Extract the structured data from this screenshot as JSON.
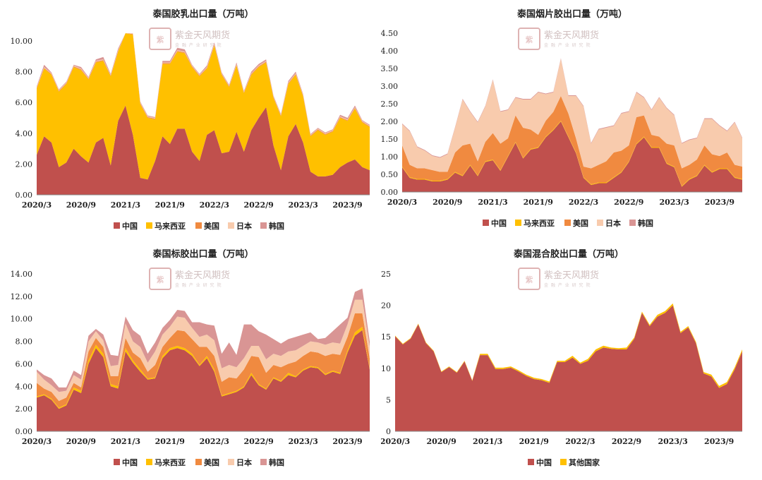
{
  "colors": {
    "中国": "#c0504d",
    "马来西亚": "#ffc000",
    "美国": "#f08a40",
    "日本": "#f8cbad",
    "韩国": "#d99594",
    "其他国家": "#ffc000"
  },
  "watermark": {
    "text": "紫金天风期货",
    "sub": "金 融 产 业 研 究 院"
  },
  "xtick_labels": [
    "2020/3",
    "2020/9",
    "2021/3",
    "2021/9",
    "2022/3",
    "2022/9",
    "2023/3",
    "2023/9"
  ],
  "chart_data": [
    {
      "type": "area",
      "title": "泰国胶乳出口量（万吨）",
      "ylim": [
        0,
        10.5
      ],
      "yticks": [
        0,
        2,
        4,
        6,
        8,
        10
      ],
      "ytick_labels": [
        "0.00",
        "2.00",
        "4.00",
        "6.00",
        "8.00",
        "10.00"
      ],
      "legend": [
        "中国",
        "马来西亚",
        "美国",
        "日本",
        "韩国"
      ],
      "series": [
        {
          "name": "中国",
          "values": [
            2.6,
            3.8,
            3.4,
            1.8,
            2.1,
            3.0,
            2.5,
            2.1,
            3.4,
            3.7,
            1.9,
            4.8,
            5.8,
            3.9,
            1.1,
            1.0,
            2.2,
            3.8,
            3.3,
            4.3,
            4.3,
            2.8,
            2.2,
            3.9,
            4.2,
            2.7,
            2.8,
            4.1,
            2.8,
            4.2,
            5.0,
            5.7,
            3.2,
            1.6,
            3.8,
            4.6,
            3.4,
            1.5,
            1.2,
            1.2,
            1.3,
            1.8,
            2.1,
            2.3,
            1.8,
            1.6
          ]
        },
        {
          "name": "马来西亚",
          "values": [
            4.3,
            4.4,
            4.4,
            4.9,
            5.1,
            5.3,
            5.6,
            5.4,
            5.2,
            5.0,
            5.8,
            4.5,
            4.7,
            6.5,
            4.8,
            4.0,
            2.7,
            4.7,
            5.2,
            5.0,
            4.9,
            5.5,
            5.5,
            4.3,
            5.5,
            5.1,
            4.2,
            4.3,
            3.8,
            3.6,
            3.3,
            2.9,
            3.1,
            3.5,
            3.4,
            3.2,
            3.0,
            2.3,
            3.0,
            2.7,
            2.8,
            3.2,
            2.7,
            3.3,
            2.9,
            2.8
          ]
        },
        {
          "name": "美国",
          "values": [
            0.05,
            0.05,
            0.05,
            0.05,
            0.05,
            0.05,
            0.05,
            0.05,
            0.05,
            0.05,
            0.05,
            0.05,
            0.05,
            0.05,
            0.05,
            0.05,
            0.05,
            0.05,
            0.05,
            0.05,
            0.05,
            0.05,
            0.05,
            0.05,
            0.05,
            0.05,
            0.05,
            0.05,
            0.05,
            0.05,
            0.05,
            0.05,
            0.05,
            0.05,
            0.05,
            0.05,
            0.05,
            0.05,
            0.05,
            0.05,
            0.05,
            0.05,
            0.05,
            0.05,
            0.05,
            0.05
          ]
        },
        {
          "name": "日本",
          "values": [
            0.05,
            0.05,
            0.05,
            0.05,
            0.05,
            0.05,
            0.05,
            0.05,
            0.05,
            0.05,
            0.05,
            0.05,
            0.05,
            0.05,
            0.05,
            0.05,
            0.05,
            0.05,
            0.05,
            0.05,
            0.05,
            0.05,
            0.05,
            0.05,
            0.05,
            0.05,
            0.05,
            0.05,
            0.05,
            0.05,
            0.05,
            0.05,
            0.05,
            0.05,
            0.05,
            0.05,
            0.05,
            0.05,
            0.05,
            0.05,
            0.05,
            0.05,
            0.05,
            0.05,
            0.05,
            0.05
          ]
        },
        {
          "name": "韩国",
          "values": [
            0.05,
            0.15,
            0.05,
            0.05,
            0.05,
            0.05,
            0.1,
            0.05,
            0.1,
            0.15,
            0.05,
            0.1,
            0.1,
            0.1,
            0.05,
            0.05,
            0.05,
            0.1,
            0.1,
            0.15,
            0.15,
            0.05,
            0.05,
            0.1,
            0.1,
            0.05,
            0.05,
            0.1,
            0.05,
            0.1,
            0.1,
            0.1,
            0.05,
            0.05,
            0.1,
            0.1,
            0.05,
            0.05,
            0.05,
            0.05,
            0.05,
            0.1,
            0.1,
            0.1,
            0.05,
            0.05
          ]
        }
      ]
    },
    {
      "type": "area",
      "title": "泰国烟片胶出口量（万吨）",
      "ylim": [
        0,
        4.5
      ],
      "yticks": [
        0,
        0.5,
        1,
        1.5,
        2,
        2.5,
        3,
        3.5,
        4,
        4.5
      ],
      "ytick_labels": [
        "0.00",
        "0.50",
        "1.00",
        "1.50",
        "2.00",
        "2.50",
        "3.00",
        "3.50",
        "4.00",
        "4.50"
      ],
      "legend": [
        "中国",
        "马来西亚",
        "美国",
        "日本",
        "韩国"
      ],
      "series": [
        {
          "name": "中国",
          "values": [
            0.7,
            0.4,
            0.35,
            0.35,
            0.3,
            0.3,
            0.35,
            0.55,
            0.45,
            0.75,
            0.45,
            0.85,
            0.9,
            0.6,
            1.0,
            1.4,
            0.95,
            1.2,
            1.25,
            1.55,
            1.75,
            2.0,
            1.55,
            1.1,
            0.4,
            0.2,
            0.25,
            0.25,
            0.4,
            0.55,
            0.85,
            1.35,
            1.55,
            1.25,
            1.25,
            0.8,
            0.7,
            0.15,
            0.35,
            0.45,
            0.75,
            0.55,
            0.65,
            0.65,
            0.4,
            0.35
          ]
        },
        {
          "name": "马来西亚",
          "values": [
            0.02,
            0.02,
            0.02,
            0.02,
            0.02,
            0.02,
            0.02,
            0.02,
            0.02,
            0.02,
            0.02,
            0.02,
            0.02,
            0.02,
            0.02,
            0.02,
            0.02,
            0.02,
            0.02,
            0.02,
            0.02,
            0.02,
            0.02,
            0.02,
            0.02,
            0.02,
            0.02,
            0.02,
            0.02,
            0.02,
            0.02,
            0.02,
            0.02,
            0.02,
            0.02,
            0.02,
            0.02,
            0.02,
            0.02,
            0.02,
            0.02,
            0.02,
            0.02,
            0.02,
            0.02,
            0.02
          ]
        },
        {
          "name": "美国",
          "values": [
            0.6,
            0.35,
            0.3,
            0.3,
            0.3,
            0.25,
            0.2,
            0.55,
            0.85,
            0.6,
            0.4,
            0.55,
            0.75,
            0.75,
            0.5,
            0.75,
            0.85,
            0.55,
            0.35,
            0.45,
            0.5,
            0.7,
            0.65,
            0.4,
            0.3,
            0.45,
            0.5,
            0.6,
            0.7,
            0.6,
            0.45,
            0.75,
            0.6,
            0.35,
            0.3,
            0.55,
            0.6,
            0.5,
            0.4,
            0.45,
            0.55,
            0.5,
            0.35,
            0.45,
            0.35,
            0.35
          ]
        },
        {
          "name": "日本",
          "values": [
            0.6,
            0.95,
            0.6,
            0.5,
            0.4,
            0.4,
            0.5,
            0.7,
            1.3,
            0.9,
            1.1,
            1.0,
            1.5,
            0.9,
            0.8,
            0.5,
            0.8,
            0.85,
            1.2,
            0.75,
            0.55,
            1.05,
            0.5,
            1.2,
            1.7,
            0.7,
            1.0,
            0.95,
            0.75,
            1.05,
            0.95,
            0.7,
            0.5,
            0.7,
            1.1,
            1.0,
            0.85,
            0.7,
            0.7,
            0.6,
            0.75,
            1.0,
            0.85,
            0.6,
            1.2,
            0.8
          ]
        },
        {
          "name": "韩国",
          "values": [
            0.02,
            0.02,
            0.02,
            0.02,
            0.02,
            0.02,
            0.02,
            0.02,
            0.02,
            0.02,
            0.02,
            0.02,
            0.02,
            0.02,
            0.02,
            0.02,
            0.02,
            0.02,
            0.02,
            0.02,
            0.02,
            0.02,
            0.02,
            0.02,
            0.02,
            0.02,
            0.02,
            0.02,
            0.02,
            0.02,
            0.02,
            0.02,
            0.02,
            0.02,
            0.02,
            0.02,
            0.02,
            0.02,
            0.02,
            0.02,
            0.02,
            0.02,
            0.02,
            0.02,
            0.02,
            0.02
          ]
        }
      ]
    },
    {
      "type": "area",
      "title": "泰国标胶出口量（万吨）",
      "ylim": [
        0,
        14
      ],
      "yticks": [
        0,
        2,
        4,
        6,
        8,
        10,
        12,
        14
      ],
      "ytick_labels": [
        "0.00",
        "2.00",
        "4.00",
        "6.00",
        "8.00",
        "10.00",
        "12.00",
        "14.00"
      ],
      "legend": [
        "中国",
        "马来西亚",
        "美国",
        "日本",
        "韩国"
      ],
      "series": [
        {
          "name": "中国",
          "values": [
            3.0,
            3.2,
            2.8,
            2.0,
            2.3,
            3.7,
            3.4,
            6.0,
            7.4,
            6.6,
            4.0,
            3.8,
            7.1,
            6.1,
            5.3,
            4.6,
            4.7,
            6.5,
            7.2,
            7.4,
            7.2,
            6.7,
            5.8,
            6.5,
            5.3,
            3.1,
            3.3,
            3.5,
            3.9,
            5.0,
            4.1,
            3.7,
            4.7,
            4.4,
            5.0,
            4.8,
            5.4,
            5.7,
            5.6,
            5.0,
            5.3,
            5.1,
            7.0,
            8.5,
            9.0,
            5.5
          ]
        },
        {
          "name": "马来西亚",
          "values": [
            0.1,
            0.1,
            0.1,
            0.1,
            0.1,
            0.2,
            0.2,
            0.3,
            0.3,
            0.3,
            0.2,
            0.2,
            0.3,
            0.2,
            0.2,
            0.1,
            0.1,
            0.2,
            0.2,
            0.2,
            0.2,
            0.2,
            0.1,
            0.2,
            0.2,
            0.1,
            0.1,
            0.1,
            0.1,
            0.2,
            0.1,
            0.1,
            0.1,
            0.1,
            0.2,
            0.1,
            0.1,
            0.1,
            0.1,
            0.1,
            0.1,
            0.1,
            0.2,
            0.3,
            0.3,
            0.1
          ]
        },
        {
          "name": "美国",
          "values": [
            1.2,
            0.5,
            0.6,
            0.6,
            0.6,
            0.4,
            0.3,
            0.8,
            0.6,
            0.6,
            0.7,
            0.9,
            0.9,
            0.7,
            1.0,
            0.6,
            1.1,
            0.8,
            0.9,
            1.4,
            1.5,
            1.3,
            1.6,
            0.8,
            1.2,
            1.2,
            1.4,
            1.1,
            1.5,
            1.5,
            2.4,
            1.4,
            1.1,
            1.2,
            0.8,
            1.3,
            1.2,
            1.3,
            1.3,
            1.6,
            1.5,
            1.6,
            1.2,
            1.7,
            1.2,
            0.9
          ]
        },
        {
          "name": "日本",
          "values": [
            1.0,
            0.8,
            0.6,
            0.8,
            0.6,
            0.7,
            0.7,
            0.9,
            0.6,
            0.6,
            0.9,
            1.0,
            1.3,
            1.0,
            1.0,
            0.8,
            1.2,
            1.1,
            1.0,
            1.2,
            1.2,
            1.0,
            0.9,
            1.1,
            1.4,
            1.2,
            1.1,
            1.0,
            1.0,
            0.9,
            1.0,
            1.2,
            1.0,
            1.0,
            1.1,
            1.0,
            0.9,
            0.9,
            0.9,
            1.0,
            1.0,
            1.0,
            1.1,
            1.2,
            1.2,
            1.0
          ]
        },
        {
          "name": "韩国",
          "values": [
            0.2,
            0.4,
            0.6,
            0.4,
            0.3,
            0.4,
            0.4,
            0.5,
            0.2,
            0.5,
            1.0,
            0.8,
            0.6,
            1.0,
            1.0,
            0.8,
            0.8,
            0.6,
            0.6,
            0.6,
            0.6,
            0.5,
            1.3,
            0.9,
            1.3,
            1.3,
            2.0,
            1.1,
            3.0,
            1.9,
            1.3,
            2.2,
            1.3,
            1.1,
            1.1,
            1.2,
            1.0,
            0.8,
            0.3,
            0.6,
            1.0,
            1.7,
            0.6,
            0.7,
            1.0,
            0.5
          ]
        }
      ]
    },
    {
      "type": "area",
      "title": "泰国混合胶出口量（万吨）",
      "ylim": [
        0,
        25
      ],
      "yticks": [
        0,
        5,
        10,
        15,
        20,
        25
      ],
      "ytick_labels": [
        "0",
        "5",
        "10",
        "15",
        "20",
        "25"
      ],
      "legend": [
        "中国",
        "其他国家"
      ],
      "series": [
        {
          "name": "中国",
          "values": [
            15.1,
            13.8,
            14.7,
            17.0,
            14.0,
            12.7,
            9.4,
            10.2,
            9.3,
            11.1,
            8.0,
            12.1,
            12.1,
            9.9,
            9.9,
            10.1,
            9.5,
            8.8,
            8.3,
            8.1,
            7.7,
            11.0,
            11.0,
            11.7,
            10.7,
            11.2,
            12.7,
            13.3,
            13.1,
            13.0,
            13.0,
            14.7,
            18.8,
            16.7,
            18.2,
            18.8,
            20.0,
            15.6,
            16.5,
            14.0,
            9.2,
            8.7,
            6.9,
            7.5,
            9.8,
            12.7
          ]
        },
        {
          "name": "其他国家",
          "values": [
            0.1,
            0.1,
            0.1,
            0.1,
            0.1,
            0.1,
            0.1,
            0.1,
            0.1,
            0.1,
            0.1,
            0.2,
            0.2,
            0.2,
            0.2,
            0.2,
            0.2,
            0.2,
            0.2,
            0.2,
            0.2,
            0.2,
            0.2,
            0.3,
            0.2,
            0.3,
            0.3,
            0.3,
            0.2,
            0.2,
            0.3,
            0.2,
            0.2,
            0.2,
            0.3,
            0.3,
            0.3,
            0.2,
            0.2,
            0.2,
            0.2,
            0.3,
            0.3,
            0.3,
            0.3,
            0.3
          ]
        }
      ]
    }
  ]
}
